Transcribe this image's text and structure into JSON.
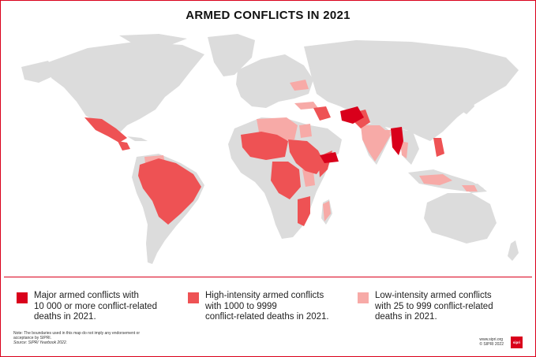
{
  "title": "ARMED CONFLICTS IN 2021",
  "colors": {
    "major": "#d9001b",
    "high": "#ee5254",
    "low": "#f7aaa7",
    "land": "#dcdcdc",
    "ocean": "#ffffff",
    "border": "#d9001b"
  },
  "legend": {
    "major": {
      "line1": "Major armed conflicts with",
      "line2": "10 000 or more conflict-related",
      "line3": "deaths in 2021."
    },
    "high": {
      "line1": "High-intensity armed conflicts",
      "line2": "with 1000 to 9999",
      "line3": "conflict-related deaths in 2021."
    },
    "low": {
      "line1": "Low-intensity armed conflicts",
      "line2": "with 25 to 999 conflict-related",
      "line3": "deaths in 2021."
    }
  },
  "note": {
    "line1": "Note: The boundaries used in this map do not imply any endorsement or",
    "line2": "acceptance by SIPRI.",
    "line3": "Source: SIPRI Yearbook 2022."
  },
  "credit": {
    "url": "www.sipri.org",
    "copyright": "© SIPRI 2022",
    "logo_text": "sipri"
  }
}
